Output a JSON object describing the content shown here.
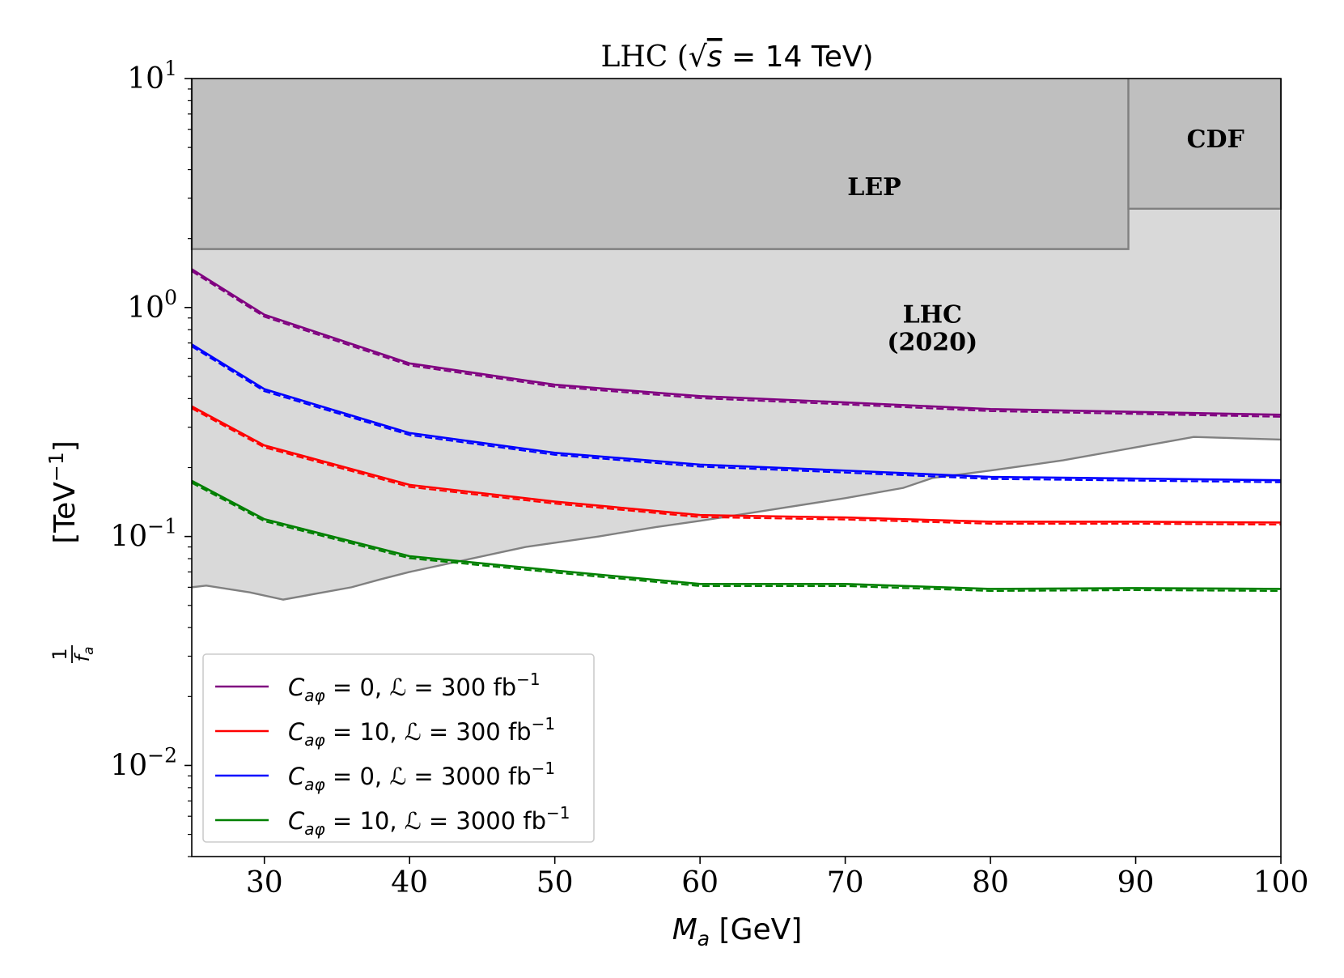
{
  "chart_data": {
    "type": "line",
    "title": "LHC (√s = 14 TeV)",
    "title_parts": {
      "prefix": "LHC (",
      "sqrt": "√",
      "s": "s",
      "rest": " = 14 TeV)"
    },
    "xlabel": {
      "main": "M",
      "sub": "a",
      "unit": " [GeV]"
    },
    "ylabel": {
      "num": "1",
      "den": "f",
      "den_sub": "a",
      "unit": "[TeV",
      "exp": "−1",
      "close": "]"
    },
    "xlim": [
      25,
      100
    ],
    "ylim": [
      0.004,
      10
    ],
    "yscale": "log",
    "x_ticks": [
      {
        "value": 30,
        "label": "30"
      },
      {
        "value": 40,
        "label": "40"
      },
      {
        "value": 50,
        "label": "50"
      },
      {
        "value": 60,
        "label": "60"
      },
      {
        "value": 70,
        "label": "70"
      },
      {
        "value": 80,
        "label": "80"
      },
      {
        "value": 90,
        "label": "90"
      },
      {
        "value": 100,
        "label": "100"
      }
    ],
    "y_ticks": [
      {
        "value": 10,
        "base": "10",
        "exp": "1"
      },
      {
        "value": 1,
        "base": "10",
        "exp": "0"
      },
      {
        "value": 0.1,
        "base": "10",
        "exp": "−1"
      },
      {
        "value": 0.01,
        "base": "10",
        "exp": "−2"
      }
    ],
    "grid": false,
    "legend_position": "lower-left",
    "regions": [
      {
        "name": "LHC (2020)",
        "label_lines": [
          "LHC",
          "(2020)"
        ],
        "color": "#d9d9d9",
        "label_at": [
          76,
          0.86
        ],
        "boundary": [
          [
            25,
            0.06
          ],
          [
            26,
            0.061
          ],
          [
            29,
            0.057
          ],
          [
            31.3,
            0.053
          ],
          [
            36,
            0.06
          ],
          [
            38,
            0.065
          ],
          [
            40,
            0.07
          ],
          [
            48,
            0.09
          ],
          [
            53,
            0.1
          ],
          [
            57,
            0.11
          ],
          [
            60,
            0.117
          ],
          [
            70,
            0.147
          ],
          [
            74,
            0.163
          ],
          [
            76,
            0.18
          ],
          [
            80,
            0.194
          ],
          [
            85,
            0.215
          ],
          [
            90,
            0.245
          ],
          [
            94,
            0.272
          ],
          [
            100,
            0.265
          ]
        ]
      },
      {
        "name": "LEP",
        "label_lines": [
          "LEP"
        ],
        "color": "#bfbfbf",
        "xrange": [
          25,
          89.5
        ],
        "lower": 1.8,
        "label_at": [
          72,
          3.1
        ]
      },
      {
        "name": "CDF",
        "label_lines": [
          "CDF"
        ],
        "color": "#bfbfbf",
        "xrange": [
          89.5,
          100
        ],
        "lower": 2.7,
        "label_at": [
          95.5,
          5.0
        ]
      }
    ],
    "series": [
      {
        "name": "C_aφ = 0, L = 300 fb⁻¹",
        "color": "#800080",
        "x": [
          25,
          30,
          40,
          50,
          60,
          70,
          80,
          90,
          100
        ],
        "y": [
          1.47,
          0.93,
          0.57,
          0.46,
          0.41,
          0.385,
          0.36,
          0.35,
          0.34
        ]
      },
      {
        "name": "C_aφ = 10, L = 300 fb⁻¹",
        "color": "#ff0000",
        "x": [
          25,
          30,
          40,
          50,
          60,
          70,
          80,
          90,
          100
        ],
        "y": [
          0.37,
          0.25,
          0.168,
          0.142,
          0.124,
          0.121,
          0.116,
          0.116,
          0.115
        ]
      },
      {
        "name": "C_aφ = 0, L = 3000 fb⁻¹",
        "color": "#0000ff",
        "x": [
          25,
          30,
          40,
          50,
          60,
          70,
          80,
          90,
          100
        ],
        "y": [
          0.69,
          0.44,
          0.283,
          0.232,
          0.206,
          0.194,
          0.182,
          0.179,
          0.176
        ]
      },
      {
        "name": "C_aφ = 10, L = 3000 fb⁻¹",
        "color": "#008000",
        "x": [
          25,
          30,
          40,
          50,
          60,
          70,
          80,
          90,
          100
        ],
        "y": [
          0.175,
          0.119,
          0.082,
          0.071,
          0.062,
          0.062,
          0.059,
          0.0595,
          0.059
        ]
      }
    ],
    "legend": [
      {
        "c": "C",
        "c_sub": "aφ",
        "eq": " = 0, ",
        "L": "ℒ",
        "val": " = 300 fb",
        "exp": "−1"
      },
      {
        "c": "C",
        "c_sub": "aφ",
        "eq": " = 10, ",
        "L": "ℒ",
        "val": " = 300 fb",
        "exp": "−1"
      },
      {
        "c": "C",
        "c_sub": "aφ",
        "eq": " = 0, ",
        "L": "ℒ",
        "val": " = 3000 fb",
        "exp": "−1"
      },
      {
        "c": "C",
        "c_sub": "aφ",
        "eq": " = 10, ",
        "L": "ℒ",
        "val": " = 3000 fb",
        "exp": "−1"
      }
    ]
  }
}
